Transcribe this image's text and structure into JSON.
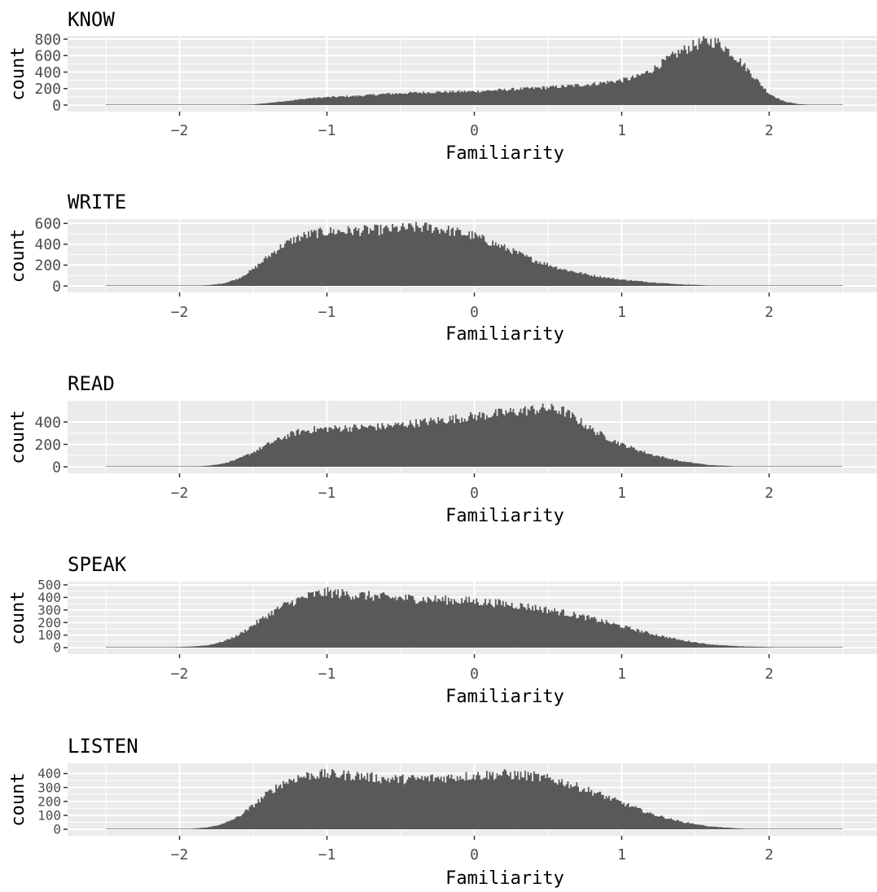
{
  "x_axis_title": "Familiarity",
  "y_axis_title": "count",
  "x_tick_labels": [
    "-2",
    "-1",
    "0",
    "1",
    "2"
  ],
  "colors": {
    "panel_background": "#ebebeb",
    "grid_line": "#ffffff",
    "bar_fill": "#595959",
    "tick_text": "#4d4d4d"
  },
  "chart_data": [
    {
      "type": "bar",
      "title": "KNOW",
      "xlabel": "Familiarity",
      "ylabel": "count",
      "xlim": [
        -2.5,
        2.5
      ],
      "ylim": [
        0,
        800
      ],
      "y_ticks": [
        0,
        200,
        400,
        600,
        800
      ],
      "y_tick_labels": [
        "0",
        "200",
        "400",
        "600",
        "800"
      ],
      "x_ticks": [
        -2,
        -1,
        0,
        1,
        2
      ],
      "x": [
        -2.5,
        -2.3,
        -2.1,
        -1.9,
        -1.7,
        -1.5,
        -1.4,
        -1.3,
        -1.2,
        -1.1,
        -1.0,
        -0.8,
        -0.6,
        -0.4,
        -0.2,
        0.0,
        0.2,
        0.4,
        0.6,
        0.8,
        1.0,
        1.1,
        1.2,
        1.3,
        1.4,
        1.5,
        1.55,
        1.6,
        1.65,
        1.7,
        1.8,
        1.9,
        2.0,
        2.1,
        2.2,
        2.3,
        2.5
      ],
      "y": [
        0,
        0,
        0,
        0,
        2,
        8,
        25,
        45,
        65,
        85,
        95,
        110,
        135,
        150,
        160,
        165,
        185,
        205,
        225,
        255,
        300,
        340,
        420,
        540,
        650,
        730,
        760,
        770,
        760,
        700,
        540,
        340,
        140,
        45,
        12,
        3,
        0
      ]
    },
    {
      "type": "bar",
      "title": "WRITE",
      "xlabel": "Familiarity",
      "ylabel": "count",
      "xlim": [
        -2.5,
        2.5
      ],
      "ylim": [
        0,
        610
      ],
      "y_ticks": [
        0,
        200,
        400,
        600
      ],
      "y_tick_labels": [
        "0",
        "200",
        "400",
        "600"
      ],
      "x_ticks": [
        -2,
        -1,
        0,
        1,
        2
      ],
      "x": [
        -2.5,
        -2.2,
        -2.0,
        -1.9,
        -1.8,
        -1.7,
        -1.6,
        -1.5,
        -1.4,
        -1.3,
        -1.2,
        -1.1,
        -1.0,
        -0.8,
        -0.6,
        -0.4,
        -0.3,
        -0.2,
        0.0,
        0.2,
        0.4,
        0.6,
        0.8,
        1.0,
        1.2,
        1.4,
        1.6,
        1.8,
        2.0,
        2.5
      ],
      "y": [
        0,
        0,
        1,
        3,
        8,
        25,
        70,
        160,
        280,
        390,
        460,
        500,
        520,
        530,
        540,
        560,
        560,
        540,
        480,
        370,
        250,
        160,
        100,
        60,
        35,
        15,
        5,
        2,
        0,
        0
      ]
    },
    {
      "type": "bar",
      "title": "READ",
      "xlabel": "Familiarity",
      "ylabel": "count",
      "xlim": [
        -2.5,
        2.5
      ],
      "ylim": [
        0,
        560
      ],
      "y_ticks": [
        0,
        200,
        400
      ],
      "y_tick_labels": [
        "0",
        "200",
        "400"
      ],
      "x_ticks": [
        -2,
        -1,
        0,
        1,
        2
      ],
      "x": [
        -2.5,
        -2.0,
        -1.9,
        -1.8,
        -1.7,
        -1.6,
        -1.5,
        -1.4,
        -1.3,
        -1.2,
        -1.1,
        -1.0,
        -0.8,
        -0.6,
        -0.4,
        -0.2,
        0.0,
        0.2,
        0.4,
        0.5,
        0.6,
        0.7,
        0.8,
        0.9,
        1.0,
        1.2,
        1.4,
        1.6,
        1.8,
        2.0,
        2.5
      ],
      "y": [
        0,
        0,
        3,
        10,
        30,
        70,
        130,
        200,
        260,
        310,
        330,
        340,
        350,
        360,
        390,
        420,
        450,
        480,
        510,
        520,
        500,
        420,
        330,
        260,
        200,
        110,
        50,
        15,
        3,
        0,
        0
      ]
    },
    {
      "type": "bar",
      "title": "SPEAK",
      "xlabel": "Familiarity",
      "ylabel": "count",
      "xlim": [
        -2.5,
        2.5
      ],
      "ylim": [
        0,
        500
      ],
      "y_ticks": [
        0,
        100,
        200,
        300,
        400,
        500
      ],
      "y_tick_labels": [
        "0",
        "100",
        "200",
        "300",
        "400",
        "500"
      ],
      "x_ticks": [
        -2,
        -1,
        0,
        1,
        2
      ],
      "x": [
        -2.5,
        -2.1,
        -2.0,
        -1.9,
        -1.8,
        -1.7,
        -1.6,
        -1.5,
        -1.4,
        -1.3,
        -1.2,
        -1.1,
        -1.0,
        -0.8,
        -0.6,
        -0.4,
        -0.2,
        0.0,
        0.2,
        0.4,
        0.6,
        0.8,
        1.0,
        1.2,
        1.4,
        1.6,
        1.8,
        2.0,
        2.1,
        2.5
      ],
      "y": [
        0,
        2,
        5,
        10,
        20,
        50,
        100,
        180,
        260,
        330,
        380,
        420,
        440,
        420,
        400,
        390,
        380,
        370,
        350,
        320,
        280,
        230,
        170,
        110,
        60,
        25,
        10,
        5,
        2,
        0
      ]
    },
    {
      "type": "bar",
      "title": "LISTEN",
      "xlabel": "Familiarity",
      "ylabel": "count",
      "xlim": [
        -2.5,
        2.5
      ],
      "ylim": [
        0,
        450
      ],
      "y_ticks": [
        0,
        100,
        200,
        300,
        400
      ],
      "y_tick_labels": [
        "0",
        "100",
        "200",
        "300",
        "400"
      ],
      "x_ticks": [
        -2,
        -1,
        0,
        1,
        2
      ],
      "x": [
        -2.5,
        -2.0,
        -1.9,
        -1.8,
        -1.7,
        -1.6,
        -1.5,
        -1.4,
        -1.3,
        -1.2,
        -1.1,
        -1.0,
        -0.8,
        -0.6,
        -0.4,
        -0.2,
        0.0,
        0.2,
        0.4,
        0.6,
        0.8,
        1.0,
        1.2,
        1.4,
        1.6,
        1.8,
        2.0,
        2.5
      ],
      "y": [
        0,
        1,
        5,
        15,
        40,
        90,
        170,
        260,
        330,
        370,
        390,
        395,
        385,
        360,
        360,
        370,
        385,
        395,
        380,
        340,
        270,
        190,
        110,
        55,
        20,
        5,
        1,
        0
      ]
    }
  ]
}
